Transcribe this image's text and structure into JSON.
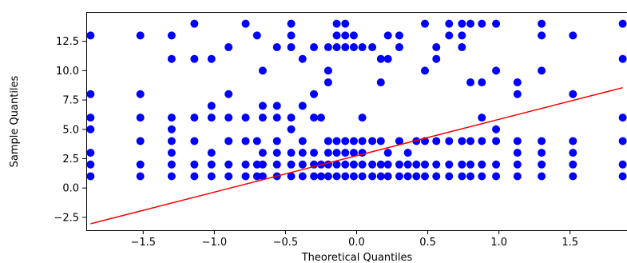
{
  "chart_data": {
    "type": "scatter",
    "title": "",
    "xlabel": "Theoretical Quantiles",
    "ylabel": "Sample Quantiles",
    "xlim": [
      -1.9,
      1.9
    ],
    "ylim": [
      -3.6,
      15.0
    ],
    "xticks": [
      -1.5,
      -1.0,
      -0.5,
      0.0,
      0.5,
      1.0,
      1.5
    ],
    "xtick_labels": [
      "−1.5",
      "−1.0",
      "−0.5",
      "0.0",
      "0.5",
      "1.0",
      "1.5"
    ],
    "yticks": [
      -2.5,
      0.0,
      2.5,
      5.0,
      7.5,
      10.0,
      12.5
    ],
    "ytick_labels": [
      "−2.5",
      "0.0",
      "2.5",
      "5.0",
      "7.5",
      "10.0",
      "12.5"
    ],
    "grid": false,
    "series": [
      {
        "kind": "points",
        "color": "#0000ff",
        "points": [
          [
            -1.87,
            1
          ],
          [
            -1.87,
            2
          ],
          [
            -1.87,
            3
          ],
          [
            -1.87,
            5
          ],
          [
            -1.87,
            6
          ],
          [
            -1.87,
            8
          ],
          [
            -1.87,
            13
          ],
          [
            -1.52,
            1
          ],
          [
            -1.52,
            2
          ],
          [
            -1.52,
            4
          ],
          [
            -1.52,
            6
          ],
          [
            -1.52,
            8
          ],
          [
            -1.52,
            13
          ],
          [
            -1.3,
            1
          ],
          [
            -1.3,
            2
          ],
          [
            -1.3,
            3
          ],
          [
            -1.3,
            4
          ],
          [
            -1.3,
            5
          ],
          [
            -1.3,
            6
          ],
          [
            -1.3,
            11
          ],
          [
            -1.3,
            13
          ],
          [
            -1.14,
            1
          ],
          [
            -1.14,
            2
          ],
          [
            -1.14,
            4
          ],
          [
            -1.14,
            6
          ],
          [
            -1.14,
            11
          ],
          [
            -1.14,
            14
          ],
          [
            -1.02,
            1
          ],
          [
            -1.02,
            2
          ],
          [
            -1.02,
            3
          ],
          [
            -1.02,
            6
          ],
          [
            -1.02,
            7
          ],
          [
            -1.02,
            11
          ],
          [
            -0.9,
            1
          ],
          [
            -0.9,
            2
          ],
          [
            -0.9,
            4
          ],
          [
            -0.9,
            6
          ],
          [
            -0.9,
            8
          ],
          [
            -0.9,
            12
          ],
          [
            -0.78,
            1
          ],
          [
            -0.78,
            2
          ],
          [
            -0.78,
            4
          ],
          [
            -0.78,
            6
          ],
          [
            -0.78,
            14
          ],
          [
            -0.7,
            1
          ],
          [
            -0.7,
            2
          ],
          [
            -0.7,
            4
          ],
          [
            -0.7,
            13
          ],
          [
            -0.66,
            1
          ],
          [
            -0.66,
            2
          ],
          [
            -0.66,
            3
          ],
          [
            -0.66,
            6
          ],
          [
            -0.66,
            7
          ],
          [
            -0.66,
            10
          ],
          [
            -0.56,
            1
          ],
          [
            -0.56,
            2
          ],
          [
            -0.56,
            3
          ],
          [
            -0.56,
            4
          ],
          [
            -0.56,
            6
          ],
          [
            -0.56,
            7
          ],
          [
            -0.56,
            12
          ],
          [
            -0.46,
            1
          ],
          [
            -0.46,
            2
          ],
          [
            -0.46,
            3
          ],
          [
            -0.46,
            5
          ],
          [
            -0.46,
            6
          ],
          [
            -0.46,
            12
          ],
          [
            -0.46,
            13
          ],
          [
            -0.46,
            14
          ],
          [
            -0.38,
            1
          ],
          [
            -0.38,
            2
          ],
          [
            -0.38,
            3
          ],
          [
            -0.38,
            4
          ],
          [
            -0.38,
            7
          ],
          [
            -0.38,
            11
          ],
          [
            -0.3,
            1
          ],
          [
            -0.3,
            2
          ],
          [
            -0.3,
            3
          ],
          [
            -0.3,
            6
          ],
          [
            -0.3,
            8
          ],
          [
            -0.3,
            12
          ],
          [
            -0.25,
            1
          ],
          [
            -0.25,
            2
          ],
          [
            -0.25,
            6
          ],
          [
            -0.2,
            1
          ],
          [
            -0.2,
            2
          ],
          [
            -0.2,
            3
          ],
          [
            -0.2,
            4
          ],
          [
            -0.2,
            9
          ],
          [
            -0.2,
            10
          ],
          [
            -0.2,
            12
          ],
          [
            -0.14,
            1
          ],
          [
            -0.14,
            2
          ],
          [
            -0.14,
            3
          ],
          [
            -0.14,
            4
          ],
          [
            -0.14,
            12
          ],
          [
            -0.14,
            13
          ],
          [
            -0.14,
            14
          ],
          [
            -0.08,
            1
          ],
          [
            -0.08,
            2
          ],
          [
            -0.08,
            3
          ],
          [
            -0.08,
            4
          ],
          [
            -0.08,
            12
          ],
          [
            -0.08,
            13
          ],
          [
            -0.08,
            14
          ],
          [
            -0.02,
            1
          ],
          [
            -0.02,
            2
          ],
          [
            -0.02,
            3
          ],
          [
            -0.02,
            4
          ],
          [
            -0.02,
            12
          ],
          [
            -0.02,
            13
          ],
          [
            0.04,
            1
          ],
          [
            0.04,
            2
          ],
          [
            0.04,
            3
          ],
          [
            0.04,
            4
          ],
          [
            0.04,
            6
          ],
          [
            0.04,
            12
          ],
          [
            0.11,
            1
          ],
          [
            0.11,
            2
          ],
          [
            0.11,
            4
          ],
          [
            0.11,
            12
          ],
          [
            0.17,
            1
          ],
          [
            0.17,
            2
          ],
          [
            0.17,
            4
          ],
          [
            0.17,
            9
          ],
          [
            0.17,
            11
          ],
          [
            0.22,
            1
          ],
          [
            0.22,
            2
          ],
          [
            0.22,
            3
          ],
          [
            0.22,
            11
          ],
          [
            0.22,
            13
          ],
          [
            0.3,
            1
          ],
          [
            0.3,
            2
          ],
          [
            0.3,
            4
          ],
          [
            0.3,
            12
          ],
          [
            0.3,
            13
          ],
          [
            0.36,
            1
          ],
          [
            0.36,
            2
          ],
          [
            0.36,
            3
          ],
          [
            0.42,
            1
          ],
          [
            0.42,
            2
          ],
          [
            0.42,
            4
          ],
          [
            0.48,
            1
          ],
          [
            0.48,
            2
          ],
          [
            0.48,
            4
          ],
          [
            0.48,
            10
          ],
          [
            0.48,
            14
          ],
          [
            0.56,
            1
          ],
          [
            0.56,
            2
          ],
          [
            0.56,
            4
          ],
          [
            0.56,
            11
          ],
          [
            0.56,
            12
          ],
          [
            0.65,
            1
          ],
          [
            0.65,
            2
          ],
          [
            0.65,
            4
          ],
          [
            0.65,
            13
          ],
          [
            0.65,
            14
          ],
          [
            0.74,
            1
          ],
          [
            0.74,
            2
          ],
          [
            0.74,
            4
          ],
          [
            0.74,
            12
          ],
          [
            0.74,
            13
          ],
          [
            0.74,
            14
          ],
          [
            0.8,
            1
          ],
          [
            0.8,
            2
          ],
          [
            0.8,
            4
          ],
          [
            0.8,
            9
          ],
          [
            0.8,
            14
          ],
          [
            0.88,
            1
          ],
          [
            0.88,
            2
          ],
          [
            0.88,
            4
          ],
          [
            0.88,
            6
          ],
          [
            0.88,
            9
          ],
          [
            0.88,
            14
          ],
          [
            0.98,
            1
          ],
          [
            0.98,
            2
          ],
          [
            0.98,
            4
          ],
          [
            0.98,
            5
          ],
          [
            0.98,
            10
          ],
          [
            0.98,
            14
          ],
          [
            1.13,
            1
          ],
          [
            1.13,
            2
          ],
          [
            1.13,
            3
          ],
          [
            1.13,
            4
          ],
          [
            1.13,
            8
          ],
          [
            1.13,
            9
          ],
          [
            1.3,
            1
          ],
          [
            1.3,
            2
          ],
          [
            1.3,
            3
          ],
          [
            1.3,
            4
          ],
          [
            1.3,
            10
          ],
          [
            1.3,
            13
          ],
          [
            1.3,
            14
          ],
          [
            1.52,
            1
          ],
          [
            1.52,
            2
          ],
          [
            1.52,
            3
          ],
          [
            1.52,
            4
          ],
          [
            1.52,
            8
          ],
          [
            1.52,
            13
          ],
          [
            1.87,
            1
          ],
          [
            1.87,
            2
          ],
          [
            1.87,
            4
          ],
          [
            1.87,
            6
          ],
          [
            1.87,
            11
          ],
          [
            1.87,
            14
          ]
        ]
      },
      {
        "kind": "line",
        "color": "#ff0000",
        "x": [
          -1.87,
          1.87
        ],
        "y": [
          -3.05,
          8.55
        ]
      }
    ]
  }
}
